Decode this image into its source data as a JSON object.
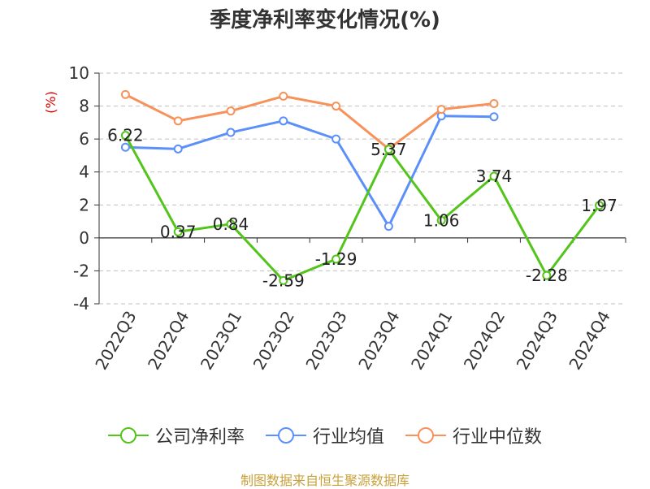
{
  "chart_data": {
    "type": "line",
    "title": "季度净利率变化情况(%)",
    "ylabel": "(%)",
    "xlabel": "",
    "categories": [
      "2022Q3",
      "2022Q4",
      "2023Q1",
      "2023Q2",
      "2023Q3",
      "2023Q4",
      "2024Q1",
      "2024Q2",
      "2024Q3",
      "2024Q4"
    ],
    "ylim": [
      -4,
      10
    ],
    "yticks": [
      -4,
      -2,
      0,
      2,
      4,
      6,
      8,
      10
    ],
    "grid": true,
    "legend_position": "bottom",
    "series": [
      {
        "name": "公司净利率",
        "color": "#52c41a",
        "values": [
          6.22,
          0.37,
          0.84,
          -2.59,
          -1.29,
          5.37,
          1.06,
          3.74,
          -2.28,
          1.97
        ],
        "labels": [
          "6.22",
          "0.37",
          "0.84",
          "-2.59",
          "-1.29",
          "5.37",
          "1.06",
          "3.74",
          "-2.28",
          "1.97"
        ]
      },
      {
        "name": "行业均值",
        "color": "#5b8ff9",
        "values": [
          5.5,
          5.4,
          6.4,
          7.1,
          6.0,
          0.7,
          7.4,
          7.35,
          null,
          null
        ]
      },
      {
        "name": "行业中位数",
        "color": "#f7925b",
        "values": [
          8.7,
          7.1,
          7.7,
          8.6,
          8.0,
          5.4,
          7.8,
          8.15,
          null,
          null
        ]
      }
    ]
  },
  "footer": {
    "text": "制图数据来自恒生聚源数据库",
    "color": "#c9a13b"
  }
}
